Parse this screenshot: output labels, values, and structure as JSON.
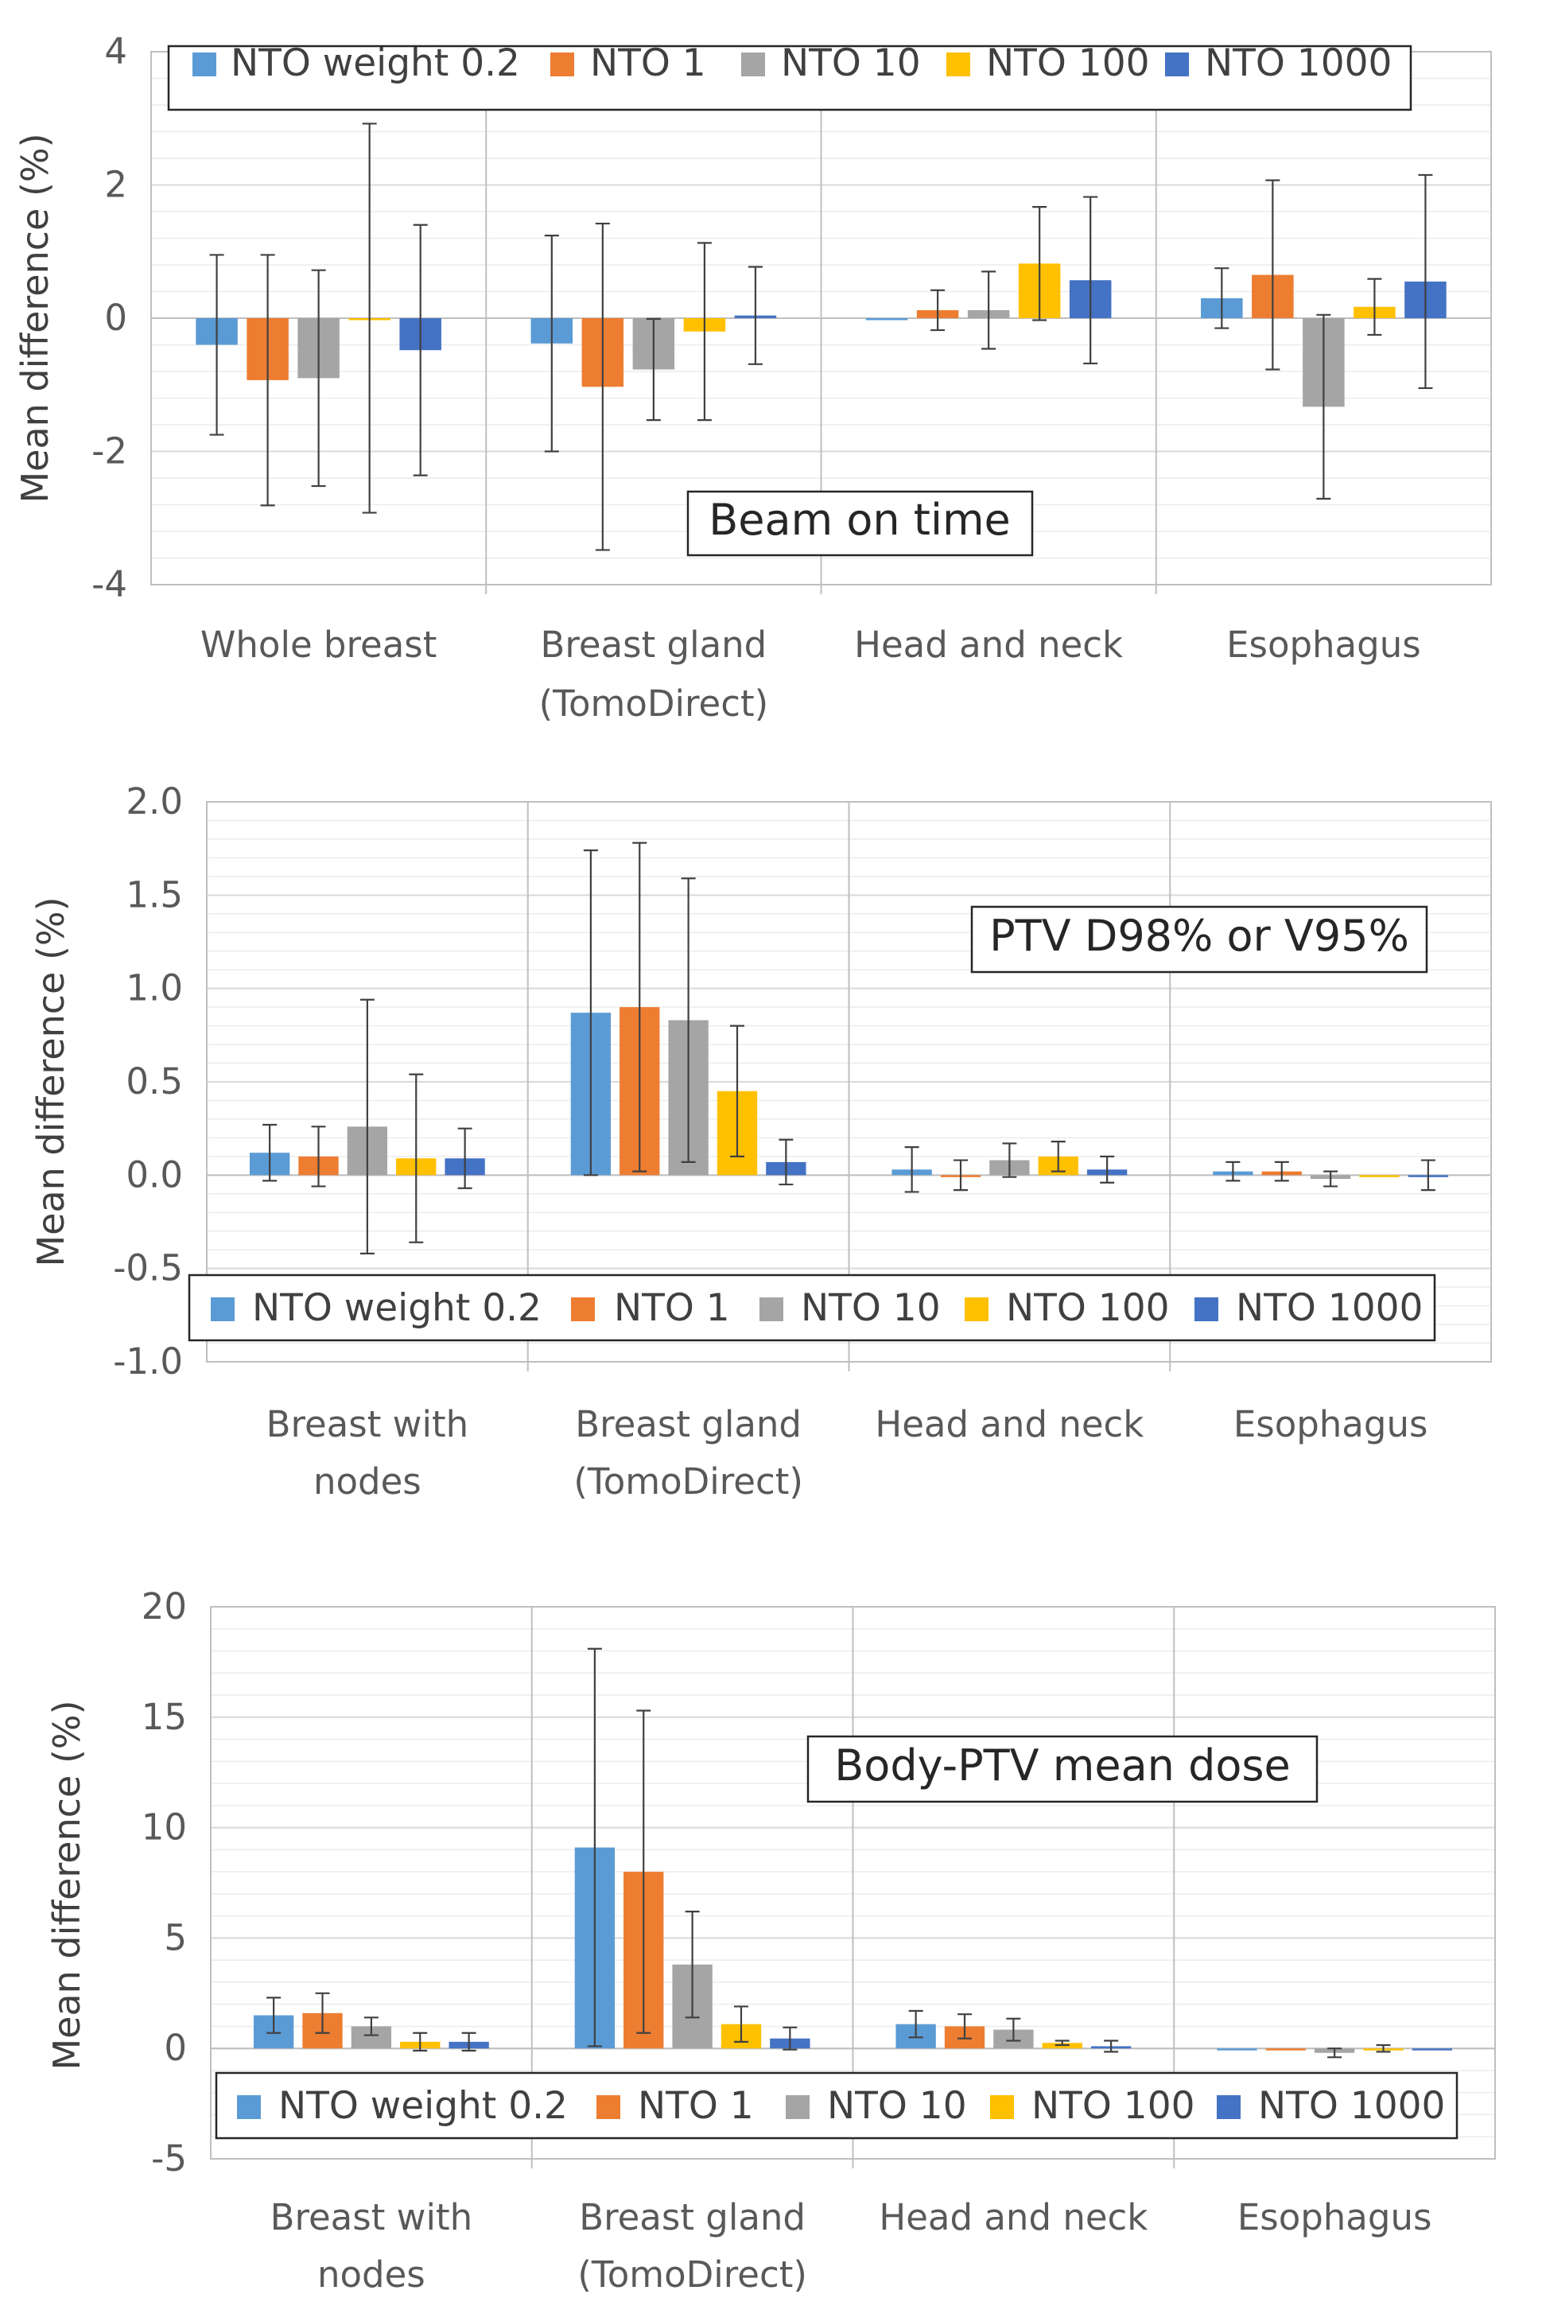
{
  "chart_data": [
    {
      "type": "bar",
      "title": "Beam on time",
      "ylabel": "Mean difference (%)",
      "ylim": [
        -4,
        4
      ],
      "yticks": [
        4,
        2,
        0,
        -2,
        -4
      ],
      "ytick_labels": [
        "4",
        "2",
        "0",
        "-2",
        "-4"
      ],
      "legend": [
        "NTO weight 0.2",
        "NTO 1",
        "NTO 10",
        "NTO 100",
        "NTO 1000"
      ],
      "legend_position": "top",
      "categories": [
        [
          "Whole breast"
        ],
        [
          "Breast gland",
          "(TomoDirect)"
        ],
        [
          "Head and neck"
        ],
        [
          "Esophagus"
        ]
      ],
      "series": [
        {
          "name": "NTO weight 0.2",
          "values": [
            -0.4,
            -0.38,
            0.0,
            0.3
          ],
          "errors": [
            1.35,
            1.62,
            0.0,
            0.45
          ]
        },
        {
          "name": "NTO 1",
          "values": [
            -0.93,
            -1.03,
            0.12,
            0.65
          ],
          "errors": [
            1.88,
            2.45,
            0.3,
            1.42
          ]
        },
        {
          "name": "NTO 10",
          "values": [
            -0.9,
            -0.77,
            0.12,
            -1.33
          ],
          "errors": [
            1.62,
            0.76,
            0.58,
            1.38
          ]
        },
        {
          "name": "NTO 100",
          "values": [
            0.0,
            -0.2,
            0.82,
            0.17
          ],
          "errors": [
            2.92,
            1.33,
            0.85,
            0.42
          ]
        },
        {
          "name": "NTO 1000",
          "values": [
            -0.48,
            0.04,
            0.57,
            0.55
          ],
          "errors": [
            1.88,
            0.73,
            1.25,
            1.6
          ]
        }
      ],
      "gridlines": true
    },
    {
      "type": "bar",
      "title": "PTV D98% or V95%",
      "ylabel": "Mean difference  (%)",
      "ylim": [
        -1.0,
        2.0
      ],
      "yticks": [
        2.0,
        1.5,
        1.0,
        0.5,
        0.0,
        -0.5,
        -1.0
      ],
      "ytick_labels": [
        "2.0",
        "1.5",
        "1.0",
        "0.5",
        "0.0",
        "-0.5",
        "-1.0"
      ],
      "legend": [
        "NTO weight 0.2",
        "NTO 1",
        "NTO 10",
        "NTO 100",
        "NTO 1000"
      ],
      "legend_position": "bottom",
      "categories": [
        [
          "Breast with",
          "nodes"
        ],
        [
          "Breast gland",
          "(TomoDirect)"
        ],
        [
          "Head and neck"
        ],
        [
          "Esophagus"
        ]
      ],
      "series": [
        {
          "name": "NTO weight 0.2",
          "values": [
            0.12,
            0.87,
            0.03,
            0.02
          ],
          "errors": [
            0.15,
            0.87,
            0.12,
            0.05
          ]
        },
        {
          "name": "NTO 1",
          "values": [
            0.1,
            0.9,
            0.0,
            0.02
          ],
          "errors": [
            0.16,
            0.88,
            0.08,
            0.05
          ]
        },
        {
          "name": "NTO 10",
          "values": [
            0.26,
            0.83,
            0.08,
            -0.02
          ],
          "errors": [
            0.68,
            0.76,
            0.09,
            0.04
          ]
        },
        {
          "name": "NTO 100",
          "values": [
            0.09,
            0.45,
            0.1,
            0.0
          ],
          "errors": [
            0.45,
            0.35,
            0.08,
            0.0
          ]
        },
        {
          "name": "NTO 1000",
          "values": [
            0.09,
            0.07,
            0.03,
            0.0
          ],
          "errors": [
            0.16,
            0.12,
            0.07,
            0.08
          ]
        }
      ],
      "gridlines": true
    },
    {
      "type": "bar",
      "title": "Body-PTV mean dose",
      "ylabel": "Mean difference  (%)",
      "ylim": [
        -5,
        20
      ],
      "yticks": [
        20,
        15,
        10,
        5,
        0,
        -5
      ],
      "ytick_labels": [
        "20",
        "15",
        "10",
        "5",
        "0",
        "-5"
      ],
      "legend": [
        "NTO weight 0.2",
        "NTO 1",
        "NTO 10",
        "NTO 100",
        "NTO 1000"
      ],
      "legend_position": "bottom",
      "categories": [
        [
          "Breast with",
          "nodes"
        ],
        [
          "Breast gland",
          "(TomoDirect)"
        ],
        [
          "Head and neck"
        ],
        [
          "Esophagus"
        ]
      ],
      "series": [
        {
          "name": "NTO weight 0.2",
          "values": [
            1.5,
            9.1,
            1.1,
            0.0
          ],
          "errors": [
            0.8,
            9.0,
            0.6,
            0.0
          ]
        },
        {
          "name": "NTO 1",
          "values": [
            1.6,
            8.0,
            1.0,
            0.0
          ],
          "errors": [
            0.9,
            7.3,
            0.55,
            0.0
          ]
        },
        {
          "name": "NTO 10",
          "values": [
            1.0,
            3.8,
            0.85,
            -0.2
          ],
          "errors": [
            0.4,
            2.4,
            0.5,
            0.2
          ]
        },
        {
          "name": "NTO 100",
          "values": [
            0.3,
            1.1,
            0.25,
            0.0
          ],
          "errors": [
            0.4,
            0.8,
            0.1,
            0.15
          ]
        },
        {
          "name": "NTO 1000",
          "values": [
            0.3,
            0.45,
            0.1,
            0.0
          ],
          "errors": [
            0.4,
            0.5,
            0.25,
            0.0
          ]
        }
      ],
      "gridlines": true
    }
  ],
  "colors": [
    "#5b9bd5",
    "#ed7d31",
    "#a5a5a5",
    "#ffc000",
    "#4472c4"
  ]
}
